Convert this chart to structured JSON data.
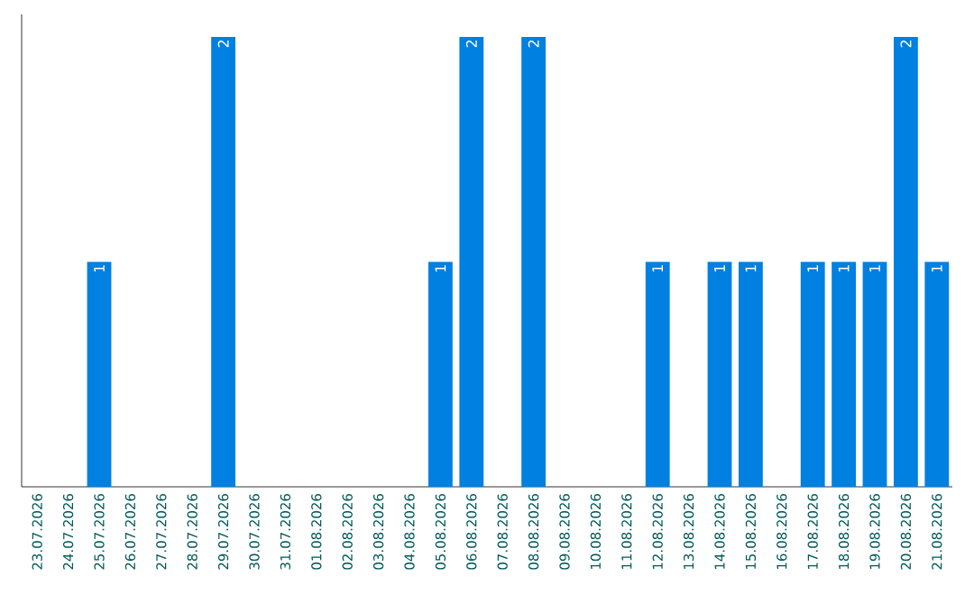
{
  "chart_data": {
    "type": "bar",
    "categories": [
      "23.07.2026",
      "24.07.2026",
      "25.07.2026",
      "26.07.2026",
      "27.07.2026",
      "28.07.2026",
      "29.07.2026",
      "30.07.2026",
      "31.07.2026",
      "01.08.2026",
      "02.08.2026",
      "03.08.2026",
      "04.08.2026",
      "05.08.2026",
      "06.08.2026",
      "07.08.2026",
      "08.08.2026",
      "09.08.2026",
      "10.08.2026",
      "11.08.2026",
      "12.08.2026",
      "13.08.2026",
      "14.08.2026",
      "15.08.2026",
      "16.08.2026",
      "17.08.2026",
      "18.08.2026",
      "19.08.2026",
      "20.08.2026",
      "21.08.2026"
    ],
    "values": [
      0,
      0,
      1,
      0,
      0,
      0,
      2,
      0,
      0,
      0,
      0,
      0,
      0,
      1,
      2,
      0,
      2,
      0,
      0,
      0,
      1,
      0,
      1,
      1,
      0,
      1,
      1,
      1,
      2,
      1
    ],
    "value_labels": [
      null,
      null,
      "1",
      null,
      null,
      null,
      "2",
      null,
      null,
      null,
      null,
      null,
      null,
      "1",
      "2",
      null,
      "2",
      null,
      null,
      null,
      "1",
      null,
      "1",
      "1",
      null,
      "1",
      "1",
      "1",
      "2",
      "1"
    ],
    "color": "#0080e0",
    "ylim": [
      0,
      2.1
    ],
    "tick_labels": "x",
    "grid": false
  }
}
